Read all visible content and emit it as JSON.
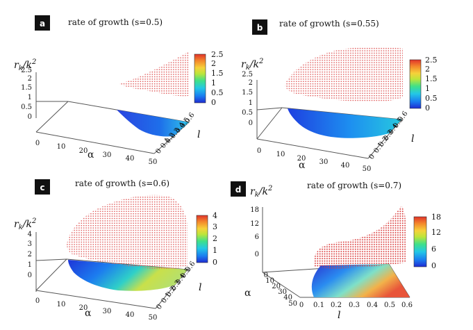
{
  "colors": {
    "surface_dots": "#e05a5a",
    "floor_line": "#555555",
    "badge_bg": "#111111",
    "colormap": [
      "#1f2bd1",
      "#1a7df0",
      "#23c7e6",
      "#3ee08a",
      "#bde53a",
      "#f6d23a",
      "#f48a2c",
      "#e0332a"
    ]
  },
  "chart_data": [
    {
      "id": "a",
      "type": "surface3d",
      "badge": "a",
      "title": "rate of growth (s=0.5)",
      "zlabel": "rk/k2",
      "zlabel_main": "r",
      "zlabel_sub": "k",
      "zlabel_slash": "/k",
      "zlabel_sup": "2",
      "xlabel": "α",
      "ylabel": "l",
      "x_ticks": [
        "0",
        "10",
        "20",
        "30",
        "40",
        "50"
      ],
      "y_ticks": [
        "0",
        "0.1",
        "0.2",
        "0.3",
        "0.4",
        "0.5",
        "0.6"
      ],
      "z_ticks": [
        "0",
        "0.5",
        "1",
        "1.5",
        "2",
        "2.5"
      ],
      "colorbar_ticks": [
        "0",
        "0.5",
        "1",
        "1.5",
        "2",
        "2.5"
      ],
      "zlim": [
        0,
        2.5
      ],
      "xlim": [
        0,
        50
      ],
      "ylim": [
        0,
        0.6
      ]
    },
    {
      "id": "b",
      "type": "surface3d",
      "badge": "b",
      "title": "rate of growth (s=0.55)",
      "zlabel": "rk/k2",
      "zlabel_main": "r",
      "zlabel_sub": "k",
      "zlabel_slash": "/k",
      "zlabel_sup": "2",
      "xlabel": "α",
      "ylabel": "l",
      "x_ticks": [
        "0",
        "10",
        "20",
        "30",
        "40",
        "50"
      ],
      "y_ticks": [
        "0",
        "0.1",
        "0.2",
        "0.3",
        "0.4",
        "0.5",
        "0.6"
      ],
      "z_ticks": [
        "0",
        "0.5",
        "1",
        "1.5",
        "2",
        "2.5"
      ],
      "colorbar_ticks": [
        "0",
        "0.5",
        "1",
        "1.5",
        "2",
        "2.5"
      ],
      "zlim": [
        0,
        2.5
      ],
      "xlim": [
        0,
        50
      ],
      "ylim": [
        0,
        0.6
      ]
    },
    {
      "id": "c",
      "type": "surface3d",
      "badge": "c",
      "title": "rate of growth (s=0.6)",
      "zlabel": "rk/k2",
      "zlabel_main": "r",
      "zlabel_sub": "k",
      "zlabel_slash": "/k",
      "zlabel_sup": "2",
      "xlabel": "α",
      "ylabel": "l",
      "x_ticks": [
        "0",
        "10",
        "20",
        "30",
        "40",
        "50"
      ],
      "y_ticks": [
        "0",
        "0.1",
        "0.2",
        "0.3",
        "0.4",
        "0.5",
        "0.6"
      ],
      "z_ticks": [
        "0",
        "1",
        "2",
        "3",
        "4"
      ],
      "colorbar_ticks": [
        "0",
        "1",
        "2",
        "3",
        "4"
      ],
      "zlim": [
        0,
        4
      ],
      "xlim": [
        0,
        50
      ],
      "ylim": [
        0,
        0.6
      ]
    },
    {
      "id": "d",
      "type": "surface3d",
      "badge": "d",
      "title": "rate of growth (s=0.7)",
      "zlabel": "rk/k2",
      "zlabel_main": "r",
      "zlabel_sub": "k",
      "zlabel_slash": "/k",
      "zlabel_sup": "2",
      "xlabel": "α",
      "ylabel": "l",
      "x_ticks": [
        "0",
        "10",
        "20",
        "30",
        "40",
        "50"
      ],
      "y_ticks": [
        "0",
        "0.1",
        "0.2",
        "0.3",
        "0.4",
        "0.5",
        "0.6"
      ],
      "z_ticks": [
        "0",
        "6",
        "12",
        "18"
      ],
      "colorbar_ticks": [
        "0",
        "6",
        "12",
        "18"
      ],
      "zlim": [
        0,
        18
      ],
      "xlim": [
        0,
        50
      ],
      "ylim": [
        0,
        0.6
      ]
    }
  ]
}
